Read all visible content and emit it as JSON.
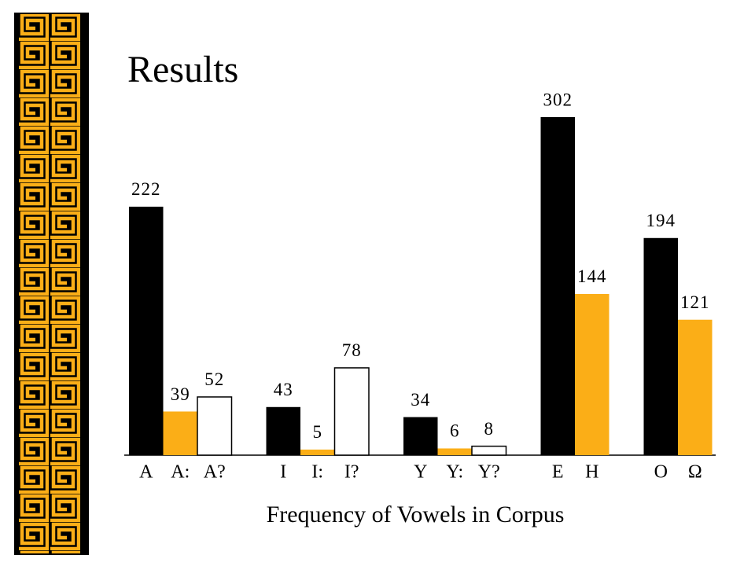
{
  "chart_data": {
    "type": "bar",
    "title": "Results",
    "x_label": "Frequency of Vowels in Corpus",
    "groups": [
      {
        "categories": [
          "A",
          "A:",
          "A?"
        ],
        "values": [
          222,
          39,
          52
        ],
        "colors": [
          "#000000",
          "#fbae17",
          "#ffffff"
        ]
      },
      {
        "categories": [
          "I",
          "I:",
          "I?"
        ],
        "values": [
          43,
          5,
          78
        ],
        "colors": [
          "#000000",
          "#fbae17",
          "#ffffff"
        ]
      },
      {
        "categories": [
          "Y",
          "Y:",
          "Y?"
        ],
        "values": [
          34,
          6,
          8
        ],
        "colors": [
          "#000000",
          "#fbae17",
          "#ffffff"
        ]
      },
      {
        "categories": [
          "E",
          "H"
        ],
        "values": [
          302,
          144
        ],
        "colors": [
          "#000000",
          "#fbae17"
        ]
      },
      {
        "categories": [
          "O",
          "Ω"
        ],
        "values": [
          194,
          121
        ],
        "colors": [
          "#000000",
          "#fbae17"
        ]
      }
    ]
  }
}
